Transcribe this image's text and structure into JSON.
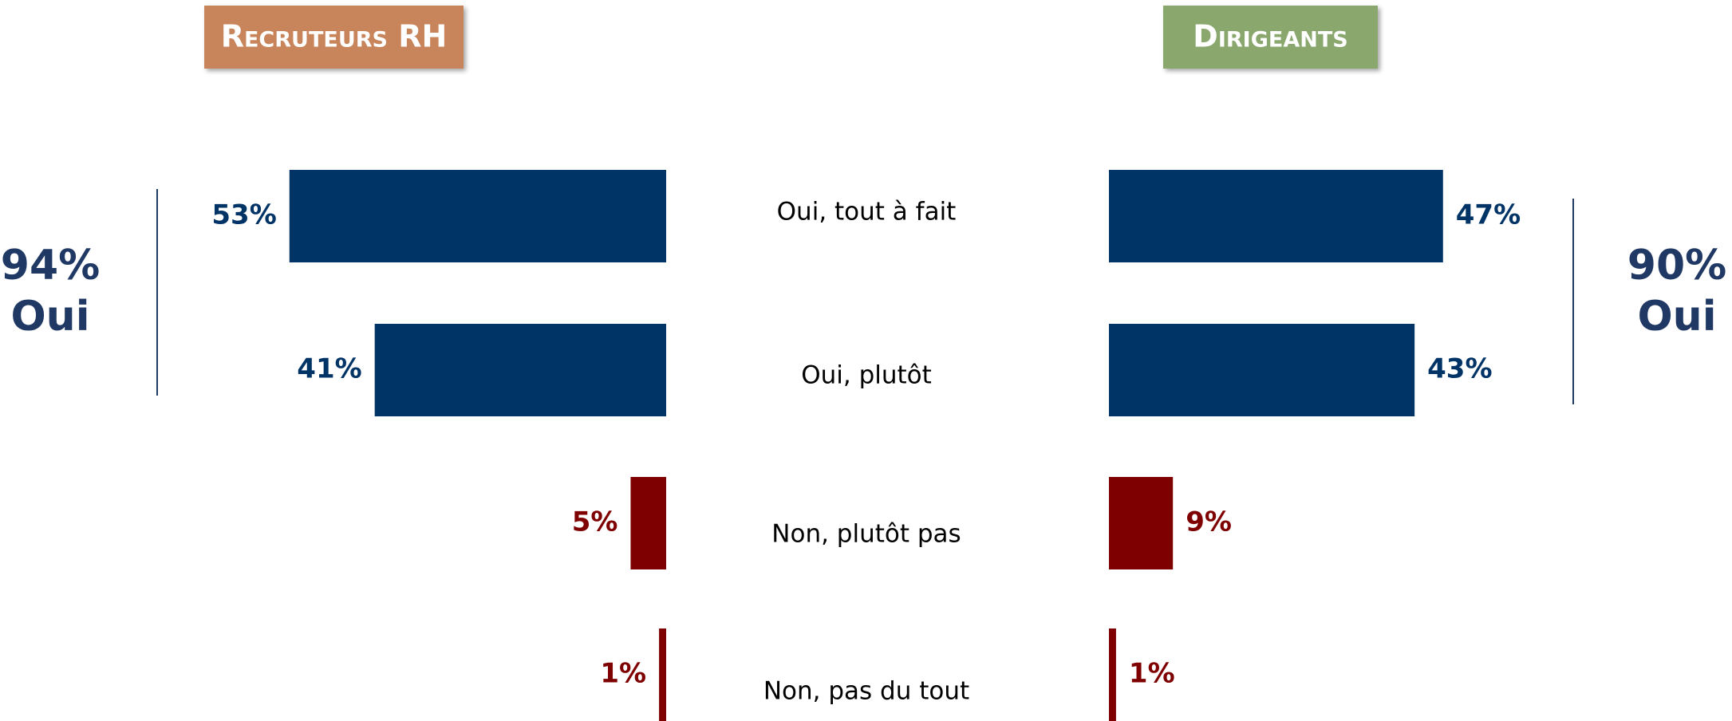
{
  "chart_data": {
    "type": "butterfly",
    "categories": [
      "Oui, tout à fait",
      "Oui, plutôt",
      "Non, plutôt pas",
      "Non, pas du tout"
    ],
    "colors": [
      "#003366",
      "#003366",
      "#7f0000",
      "#7f0000"
    ],
    "series": [
      {
        "name": "Recruteurs RH",
        "color": "#c8845a",
        "values": [
          53,
          41,
          5,
          1
        ],
        "value_labels": [
          "53%",
          "41%",
          "5%",
          "1%"
        ],
        "summary": [
          "94%",
          "Oui"
        ]
      },
      {
        "name": "Dirigeants",
        "color": "#8aa86e",
        "values": [
          47,
          43,
          9,
          1
        ],
        "value_labels": [
          "47%",
          "43%",
          "9%",
          "1%"
        ],
        "summary": [
          "90%",
          "Oui"
        ]
      }
    ]
  }
}
